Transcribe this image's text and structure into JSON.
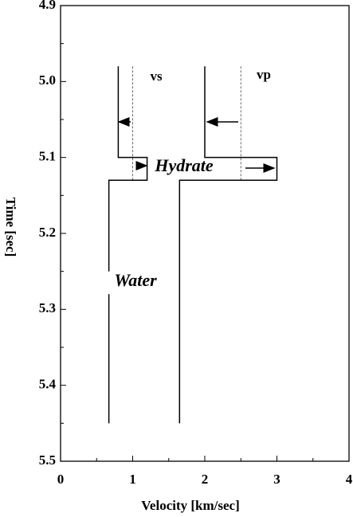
{
  "chart_data": {
    "type": "line",
    "xlabel": "Velocity [km/sec]",
    "ylabel": "Time [sec]",
    "xlim": [
      0,
      4
    ],
    "xticks": [
      0,
      1,
      2,
      3,
      4
    ],
    "ylim": [
      4.9,
      5.5
    ],
    "yticks": [
      4.9,
      {
        "value": 5,
        "label": "5.0"
      },
      5.1,
      5.2,
      5.3,
      5.4,
      5.5
    ],
    "y_inverted": true,
    "series": [
      {
        "name": "vs",
        "color": "#000000",
        "velocity": [
          0.8,
          0.8,
          1.2,
          1.2,
          0.67,
          0.67,
          null,
          0.67,
          0.67
        ],
        "time": [
          4.98,
          5.1,
          5.1,
          5.13,
          5.13,
          5.25,
          null,
          5.28,
          5.45
        ]
      },
      {
        "name": "vp",
        "color": "#000000",
        "velocity": [
          2.0,
          2.0,
          3.0,
          3.0,
          1.65,
          1.65
        ],
        "time": [
          4.98,
          5.1,
          5.1,
          5.13,
          5.13,
          5.45
        ]
      }
    ],
    "reference_lines": [
      {
        "velocity": [
          1.0,
          1.0
        ],
        "time": [
          4.98,
          5.13
        ],
        "dashed": true
      },
      {
        "velocity": [
          2.5,
          2.5
        ],
        "time": [
          4.98,
          5.13
        ],
        "dashed": true
      }
    ],
    "annotations": [
      "Hydrate",
      "Water"
    ]
  }
}
